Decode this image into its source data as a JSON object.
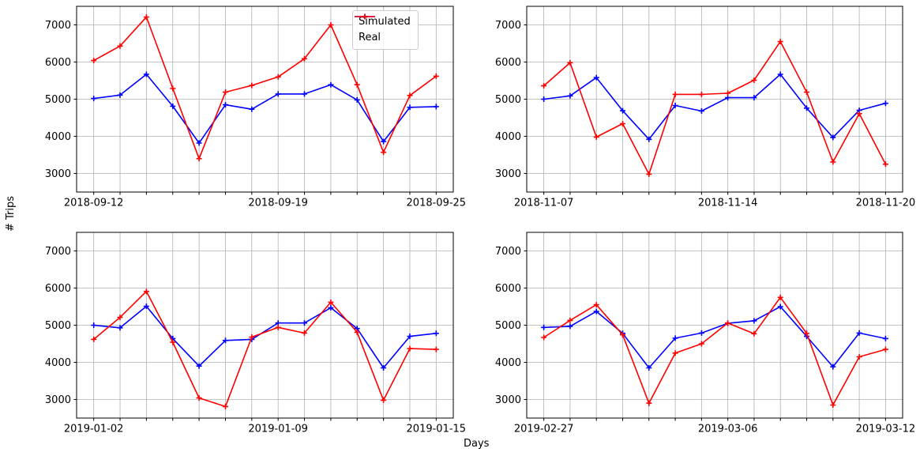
{
  "figure": {
    "ylabel": "# Trips",
    "xlabel": "Days",
    "background_color": "#ffffff",
    "grid_color": "#b0b0b0",
    "axis_color": "#000000",
    "text_color": "#000000"
  },
  "legend": {
    "location": "top-right of first subplot",
    "items": [
      {
        "label": "Simulated",
        "color": "#0000ff",
        "marker": "plus"
      },
      {
        "label": "Real",
        "color": "#ff0000",
        "marker": "plus"
      }
    ]
  },
  "chart_data": [
    {
      "type": "line",
      "position": "top-left",
      "x_range": [
        "2018-09-12",
        "2018-09-25"
      ],
      "n_points": 14,
      "x_dates": [
        "2018-09-12",
        "2018-09-13",
        "2018-09-14",
        "2018-09-15",
        "2018-09-16",
        "2018-09-17",
        "2018-09-18",
        "2018-09-19",
        "2018-09-20",
        "2018-09-21",
        "2018-09-22",
        "2018-09-23",
        "2018-09-24",
        "2018-09-25"
      ],
      "x_ticks": [
        {
          "index": 0,
          "label": "2018-09-12"
        },
        {
          "index": 7,
          "label": "2018-09-19"
        },
        {
          "index": 13,
          "label": "2018-09-25"
        }
      ],
      "y_ticks": [
        3000,
        4000,
        5000,
        6000,
        7000
      ],
      "ylim": [
        2500,
        7500
      ],
      "grid": true,
      "series": [
        {
          "name": "Simulated",
          "color": "#0000ff",
          "marker": "plus",
          "values": [
            5020,
            5110,
            5670,
            4810,
            3820,
            4850,
            4730,
            5140,
            5140,
            5390,
            4980,
            3860,
            4780,
            4800
          ]
        },
        {
          "name": "Real",
          "color": "#ff0000",
          "marker": "plus",
          "values": [
            6040,
            6430,
            7210,
            5290,
            3400,
            5190,
            5370,
            5600,
            6090,
            7000,
            5390,
            3570,
            5100,
            5620
          ]
        }
      ]
    },
    {
      "type": "line",
      "position": "top-right",
      "x_range": [
        "2018-11-07",
        "2018-11-20"
      ],
      "n_points": 14,
      "x_dates": [
        "2018-11-07",
        "2018-11-08",
        "2018-11-09",
        "2018-11-10",
        "2018-11-11",
        "2018-11-12",
        "2018-11-13",
        "2018-11-14",
        "2018-11-15",
        "2018-11-16",
        "2018-11-17",
        "2018-11-18",
        "2018-11-19",
        "2018-11-20"
      ],
      "x_ticks": [
        {
          "index": 0,
          "label": "2018-11-07"
        },
        {
          "index": 7,
          "label": "2018-11-14"
        },
        {
          "index": 13,
          "label": "2018-11-20"
        }
      ],
      "y_ticks": [
        3000,
        4000,
        5000,
        6000,
        7000
      ],
      "ylim": [
        2500,
        7500
      ],
      "grid": true,
      "series": [
        {
          "name": "Simulated",
          "color": "#0000ff",
          "marker": "plus",
          "values": [
            5000,
            5090,
            5580,
            4690,
            3920,
            4830,
            4680,
            5040,
            5040,
            5670,
            4760,
            3970,
            4700,
            4890
          ]
        },
        {
          "name": "Real",
          "color": "#ff0000",
          "marker": "plus",
          "values": [
            5360,
            5980,
            3980,
            4340,
            2980,
            5130,
            5130,
            5160,
            5510,
            6550,
            5190,
            3310,
            4610,
            3250
          ]
        }
      ]
    },
    {
      "type": "line",
      "position": "bottom-left",
      "x_range": [
        "2019-01-02",
        "2019-01-15"
      ],
      "n_points": 14,
      "x_dates": [
        "2019-01-02",
        "2019-01-03",
        "2019-01-04",
        "2019-01-05",
        "2019-01-06",
        "2019-01-07",
        "2019-01-08",
        "2019-01-09",
        "2019-01-10",
        "2019-01-11",
        "2019-01-12",
        "2019-01-13",
        "2019-01-14",
        "2019-01-15"
      ],
      "x_ticks": [
        {
          "index": 0,
          "label": "2019-01-02"
        },
        {
          "index": 7,
          "label": "2019-01-09"
        },
        {
          "index": 13,
          "label": "2019-01-15"
        }
      ],
      "y_ticks": [
        3000,
        4000,
        5000,
        6000,
        7000
      ],
      "ylim": [
        2500,
        7500
      ],
      "grid": true,
      "series": [
        {
          "name": "Simulated",
          "color": "#0000ff",
          "marker": "plus",
          "values": [
            5000,
            4930,
            5510,
            4640,
            3900,
            4590,
            4620,
            5060,
            5060,
            5470,
            4910,
            3850,
            4700,
            4780
          ]
        },
        {
          "name": "Real",
          "color": "#ff0000",
          "marker": "plus",
          "values": [
            4620,
            5210,
            5910,
            4540,
            3040,
            2810,
            4680,
            4940,
            4790,
            5620,
            4810,
            2980,
            4370,
            4350
          ]
        }
      ]
    },
    {
      "type": "line",
      "position": "bottom-right",
      "x_range": [
        "2019-02-27",
        "2019-03-12"
      ],
      "n_points": 14,
      "x_dates": [
        "2019-02-27",
        "2019-02-28",
        "2019-03-01",
        "2019-03-02",
        "2019-03-03",
        "2019-03-04",
        "2019-03-05",
        "2019-03-06",
        "2019-03-07",
        "2019-03-08",
        "2019-03-09",
        "2019-03-10",
        "2019-03-11",
        "2019-03-12"
      ],
      "x_ticks": [
        {
          "index": 0,
          "label": "2019-02-27"
        },
        {
          "index": 7,
          "label": "2019-03-06"
        },
        {
          "index": 13,
          "label": "2019-03-12"
        }
      ],
      "y_ticks": [
        3000,
        4000,
        5000,
        6000,
        7000
      ],
      "ylim": [
        2500,
        7500
      ],
      "grid": true,
      "series": [
        {
          "name": "Simulated",
          "color": "#0000ff",
          "marker": "plus",
          "values": [
            4940,
            4970,
            5370,
            4780,
            3850,
            4650,
            4790,
            5050,
            5120,
            5500,
            4700,
            3880,
            4790,
            4640
          ]
        },
        {
          "name": "Real",
          "color": "#ff0000",
          "marker": "plus",
          "values": [
            4670,
            5130,
            5550,
            4740,
            2900,
            4250,
            4500,
            5060,
            4770,
            5750,
            4780,
            2850,
            4150,
            4350
          ]
        }
      ]
    }
  ]
}
